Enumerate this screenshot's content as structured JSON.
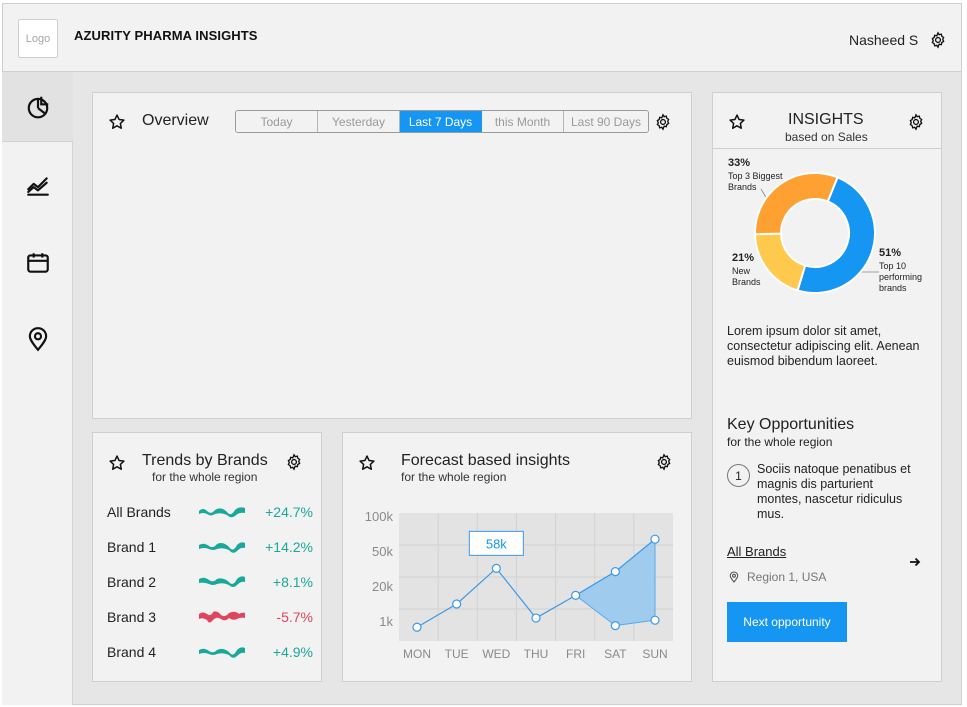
{
  "header": {
    "logo_text": "Logo",
    "app_title": "AZURITY PHARMA INSIGHTS",
    "user_name": "Nasheed S"
  },
  "sidebar": {
    "items": [
      {
        "icon": "pie-chart-icon",
        "active": true
      },
      {
        "icon": "line-chart-icon",
        "active": false
      },
      {
        "icon": "calendar-icon",
        "active": false
      },
      {
        "icon": "location-pin-icon",
        "active": false
      }
    ]
  },
  "overview": {
    "title": "Overview",
    "ranges": [
      "Today",
      "Yesterday",
      "Last 7 Days",
      "this Month",
      "Last 90 Days"
    ],
    "selected_range": "Last 7 Days"
  },
  "trends": {
    "title": "Trends by Brands",
    "subtitle": "for the whole region",
    "rows": [
      {
        "name": "All Brands",
        "value": "+24.7%",
        "color": "#1aa89a"
      },
      {
        "name": "Brand 1",
        "value": "+14.2%",
        "color": "#1aa89a"
      },
      {
        "name": "Brand 2",
        "value": "+8.1%",
        "color": "#1aa89a"
      },
      {
        "name": "Brand 3",
        "value": "-5.7%",
        "color": "#e0455f"
      },
      {
        "name": "Brand 4",
        "value": "+4.9%",
        "color": "#1aa89a"
      }
    ]
  },
  "forecast": {
    "title": "Forecast based insights",
    "subtitle": "for the whole region",
    "tooltip": "58k"
  },
  "chart_data": {
    "type": "line",
    "categories": [
      "MON",
      "TUE",
      "WED",
      "THU",
      "FRI",
      "SAT",
      "SUN"
    ],
    "y_ticks": [
      "100k",
      "50k",
      "20k",
      "1k"
    ],
    "series": [
      {
        "values": [
          3.5,
          25,
          58,
          12,
          33,
          55,
          85
        ]
      }
    ],
    "forecast_band": {
      "x": [
        "FRI",
        "SAT",
        "SUN"
      ],
      "lower": [
        33,
        5,
        10
      ],
      "upper": [
        33,
        55,
        85
      ]
    },
    "highlight": {
      "x": "WED",
      "label": "58k"
    },
    "grid": true
  },
  "insights": {
    "title": "INSIGHTS",
    "subtitle": "based on Sales",
    "donut": [
      {
        "pct": "33%",
        "label": "Top 3 Biggest Brands",
        "value": 33,
        "color": "#ffa033"
      },
      {
        "pct": "21%",
        "label": "New Brands",
        "value": 21,
        "color": "#ffc94d"
      },
      {
        "pct": "51%",
        "label": "Top 10 performing brands",
        "value": 51,
        "color": "#1596f2"
      }
    ],
    "body": "Lorem ipsum dolor sit amet, consectetur adipiscing elit. Aenean euismod bibendum laoreet.",
    "key_title": "Key Opportunities",
    "key_subtitle": "for the whole region",
    "opportunity_number": "1",
    "opportunity_text": "Sociis natoque penatibus et magnis dis parturient montes, nascetur ridiculus mus.",
    "brand_link": "All Brands",
    "region": "Region 1, USA",
    "next_button": "Next opportunity"
  },
  "colors": {
    "accent": "#1596f2",
    "positive": "#1aa89a",
    "negative": "#e0455f"
  }
}
